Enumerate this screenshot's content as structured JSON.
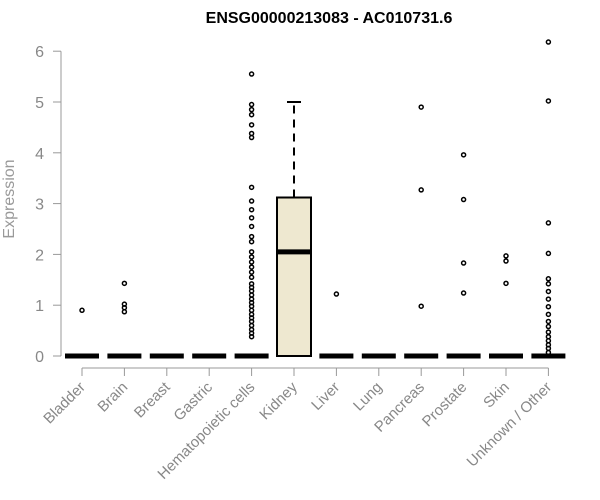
{
  "chart_data": {
    "type": "box",
    "title": "ENSG00000213083 - AC010731.6",
    "xlabel": "",
    "ylabel": "Expression",
    "ylim": [
      0,
      6.2
    ],
    "yticks": [
      0,
      1,
      2,
      3,
      4,
      5,
      6
    ],
    "box_fill": "#EEE8D0",
    "categories": [
      "Bladder",
      "Brain",
      "Breast",
      "Gastric",
      "Hematopoietic cells",
      "Kidney",
      "Liver",
      "Lung",
      "Pancreas",
      "Prostate",
      "Skin",
      "Unknown / Other"
    ],
    "boxes": [
      {
        "category": "Bladder",
        "q1": 0,
        "median": 0,
        "q3": 0,
        "whisker_low": 0,
        "whisker_high": 0,
        "outliers": [
          0.9
        ]
      },
      {
        "category": "Brain",
        "q1": 0,
        "median": 0,
        "q3": 0,
        "whisker_low": 0,
        "whisker_high": 0,
        "outliers": [
          0.87,
          0.95,
          1.02,
          1.43
        ]
      },
      {
        "category": "Breast",
        "q1": 0,
        "median": 0,
        "q3": 0,
        "whisker_low": 0,
        "whisker_high": 0,
        "outliers": []
      },
      {
        "category": "Gastric",
        "q1": 0,
        "median": 0,
        "q3": 0,
        "whisker_low": 0,
        "whisker_high": 0,
        "outliers": []
      },
      {
        "category": "Hematopoietic cells",
        "q1": 0,
        "median": 0,
        "q3": 0,
        "whisker_low": 0,
        "whisker_high": 0,
        "outliers": [
          0.38,
          0.45,
          0.52,
          0.6,
          0.68,
          0.75,
          0.82,
          0.9,
          0.98,
          1.05,
          1.12,
          1.2,
          1.28,
          1.35,
          1.42,
          1.55,
          1.65,
          1.75,
          1.85,
          1.95,
          2.05,
          2.25,
          2.35,
          2.55,
          2.72,
          2.88,
          3.05,
          3.32,
          4.3,
          4.38,
          4.55,
          4.75,
          4.85,
          4.95,
          5.55
        ]
      },
      {
        "category": "Kidney",
        "q1": 0,
        "median": 2.05,
        "q3": 3.12,
        "whisker_low": 0,
        "whisker_high": 5.0,
        "outliers": []
      },
      {
        "category": "Liver",
        "q1": 0,
        "median": 0,
        "q3": 0,
        "whisker_low": 0,
        "whisker_high": 0,
        "outliers": [
          1.22
        ]
      },
      {
        "category": "Lung",
        "q1": 0,
        "median": 0,
        "q3": 0,
        "whisker_low": 0,
        "whisker_high": 0,
        "outliers": []
      },
      {
        "category": "Pancreas",
        "q1": 0,
        "median": 0,
        "q3": 0,
        "whisker_low": 0,
        "whisker_high": 0,
        "outliers": [
          0.98,
          3.27,
          4.9
        ]
      },
      {
        "category": "Prostate",
        "q1": 0,
        "median": 0,
        "q3": 0,
        "whisker_low": 0,
        "whisker_high": 0,
        "outliers": [
          1.24,
          1.83,
          3.08,
          3.96
        ]
      },
      {
        "category": "Skin",
        "q1": 0,
        "median": 0,
        "q3": 0,
        "whisker_low": 0,
        "whisker_high": 0,
        "outliers": [
          1.43,
          1.87,
          1.97
        ]
      },
      {
        "category": "Unknown / Other",
        "q1": 0,
        "median": 0,
        "q3": 0,
        "whisker_low": 0,
        "whisker_high": 0,
        "outliers": [
          0.07,
          0.15,
          0.22,
          0.3,
          0.38,
          0.47,
          0.58,
          0.68,
          0.82,
          0.97,
          1.12,
          1.27,
          1.42,
          1.52,
          2.02,
          2.62,
          5.02,
          6.18
        ]
      }
    ]
  }
}
